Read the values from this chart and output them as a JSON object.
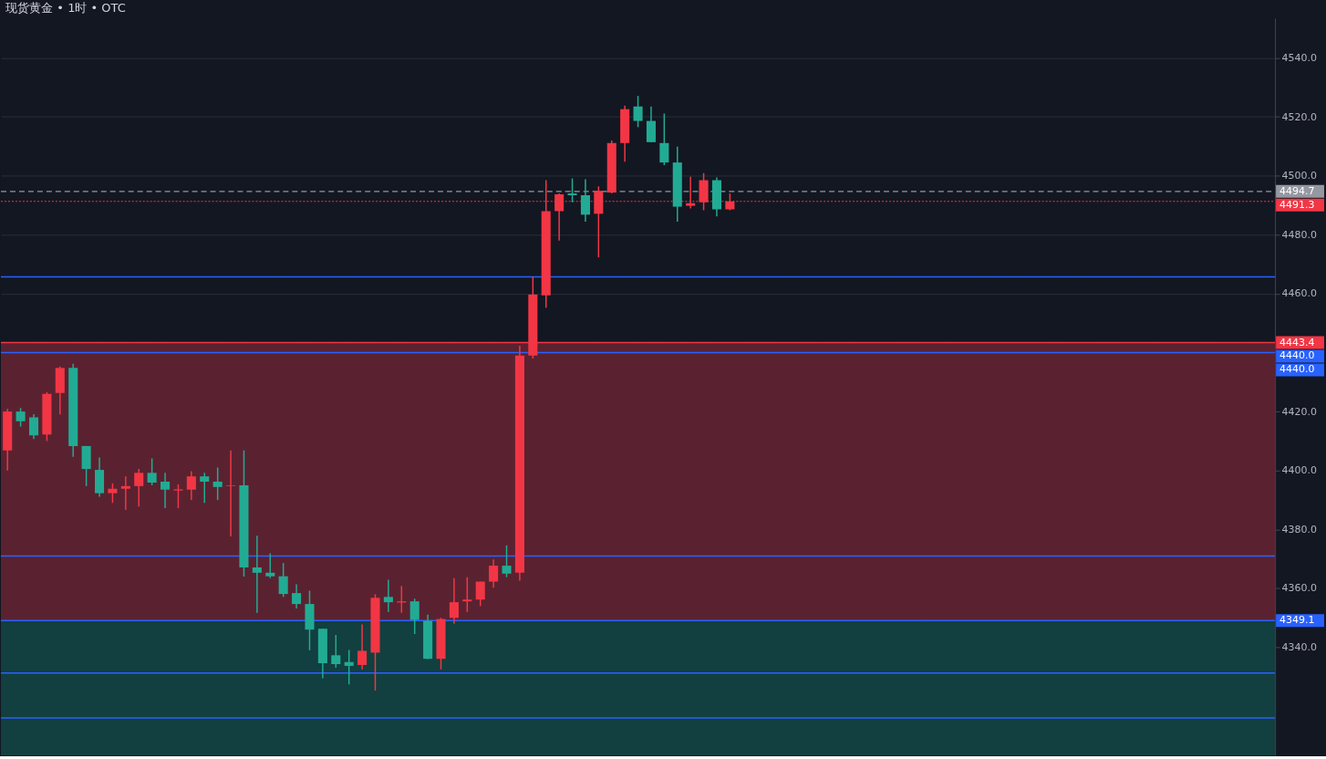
{
  "chart_data": {
    "type": "candlestick",
    "title": "现货黄金 • 1时 • OTC",
    "categories": [
      null,
      null,
      null,
      null,
      null,
      null,
      null,
      null,
      null,
      null,
      null,
      null,
      null,
      null,
      null,
      null,
      null,
      null,
      null,
      null,
      null,
      null,
      null,
      null,
      null,
      null,
      null,
      null,
      null,
      null,
      null,
      null,
      null,
      null,
      null,
      null,
      null,
      null,
      null,
      null,
      null,
      null,
      null,
      null,
      null,
      null,
      null,
      null,
      null,
      null,
      null,
      null,
      null,
      null,
      null,
      null,
      null,
      null,
      null,
      null,
      null,
      null,
      null,
      null,
      null,
      null,
      null,
      null,
      null,
      null,
      null,
      null,
      null,
      null,
      null,
      null,
      null,
      null,
      null,
      null,
      null,
      null,
      null,
      null,
      null,
      null,
      null,
      null,
      null,
      null,
      null,
      null,
      null,
      null,
      null,
      null,
      null
    ],
    "ohlc": [
      [
        4406.8,
        4420.9,
        4400.0,
        4420.0
      ],
      [
        4420.0,
        4421.2,
        4414.9,
        4416.7
      ],
      [
        4418.0,
        4419.1,
        4410.7,
        4411.9
      ],
      [
        4412.2,
        4426.6,
        4410.0,
        4426.0
      ],
      [
        4426.3,
        4435.3,
        4419.0,
        4434.8
      ],
      [
        4434.8,
        4436.2,
        4404.6,
        4408.3
      ],
      [
        4408.3,
        4408.3,
        4394.7,
        4400.5
      ],
      [
        4400.2,
        4404.4,
        4391.1,
        4392.3
      ],
      [
        4392.3,
        4395.6,
        4389.0,
        4393.8
      ],
      [
        4393.8,
        4398.0,
        4386.6,
        4394.7
      ],
      [
        4394.7,
        4400.5,
        4387.8,
        4399.2
      ],
      [
        4399.2,
        4404.1,
        4395.0,
        4395.9
      ],
      [
        4396.2,
        4399.2,
        4387.2,
        4393.5
      ],
      [
        4393.2,
        4395.3,
        4387.2,
        4393.6
      ],
      [
        4393.5,
        4399.8,
        4390.0,
        4398.0
      ],
      [
        4398.0,
        4399.2,
        4389.0,
        4396.2
      ],
      [
        4396.2,
        4401.0,
        4390.0,
        4394.4
      ],
      [
        4394.7,
        4406.8,
        4377.6,
        4395.0
      ],
      [
        4395.0,
        4406.8,
        4364.0,
        4367.1
      ],
      [
        4367.1,
        4377.9,
        4351.7,
        4365.3
      ],
      [
        4365.3,
        4371.9,
        4363.5,
        4364.1
      ],
      [
        4364.1,
        4368.6,
        4357.1,
        4358.1
      ],
      [
        4358.4,
        4361.4,
        4353.2,
        4354.7
      ],
      [
        4354.7,
        4359.2,
        4339.0,
        4346.0
      ],
      [
        4346.3,
        4346.3,
        4329.5,
        4334.6
      ],
      [
        4337.3,
        4344.2,
        4333.1,
        4334.3
      ],
      [
        4335.0,
        4339.1,
        4327.4,
        4333.7
      ],
      [
        4334.0,
        4347.8,
        4332.5,
        4338.8
      ],
      [
        4338.2,
        4358.0,
        4325.3,
        4356.8
      ],
      [
        4357.1,
        4362.9,
        4352.0,
        4355.3
      ],
      [
        4355.2,
        4360.8,
        4351.7,
        4355.6
      ],
      [
        4355.6,
        4356.5,
        4344.5,
        4349.3
      ],
      [
        4349.0,
        4351.1,
        4336.0,
        4336.1
      ],
      [
        4336.1,
        4350.0,
        4332.5,
        4349.6
      ],
      [
        4350.0,
        4363.5,
        4348.0,
        4355.3
      ],
      [
        4355.6,
        4363.8,
        4352.0,
        4356.2
      ],
      [
        4356.2,
        4362.3,
        4354.0,
        4362.3
      ],
      [
        4362.3,
        4369.8,
        4360.2,
        4367.7
      ],
      [
        4367.7,
        4374.6,
        4363.8,
        4365.0
      ],
      [
        4365.3,
        4442.3,
        4362.6,
        4439.0
      ],
      [
        4439.0,
        4465.7,
        4438.0,
        4459.7
      ],
      [
        4459.4,
        4498.5,
        4455.2,
        4488.0
      ],
      [
        4488.0,
        4494.0,
        4478.0,
        4493.7
      ],
      [
        4494.0,
        4499.1,
        4491.0,
        4493.4
      ],
      [
        4493.4,
        4498.8,
        4484.4,
        4486.8
      ],
      [
        4487.1,
        4496.4,
        4472.3,
        4494.9
      ],
      [
        4494.3,
        4512.0,
        4494.0,
        4511.1
      ],
      [
        4511.1,
        4523.8,
        4504.8,
        4522.6
      ],
      [
        4523.5,
        4527.1,
        4516.5,
        4518.6
      ],
      [
        4518.6,
        4523.5,
        4511.4,
        4511.4
      ],
      [
        4511.1,
        4521.1,
        4503.6,
        4504.5
      ],
      [
        4504.5,
        4509.9,
        4484.4,
        4489.5
      ],
      [
        4489.8,
        4499.7,
        4488.9,
        4490.7
      ],
      [
        4491.0,
        4500.9,
        4488.3,
        4498.5
      ],
      [
        4498.5,
        4499.4,
        4486.2,
        4488.6
      ],
      [
        4488.6,
        4494.0,
        4488.3,
        4491.3
      ],
      null,
      null,
      null,
      null,
      null,
      null,
      null,
      null,
      null,
      null,
      null,
      null,
      null,
      null,
      null,
      null,
      null,
      null,
      null,
      null,
      null,
      null,
      null,
      null,
      null,
      null,
      null,
      null,
      null,
      null,
      null,
      null,
      null,
      null,
      null,
      null,
      null,
      null,
      null,
      null,
      null
    ],
    "colors": [
      "#f23645",
      "#22ab94",
      "#22ab94",
      "#f23645",
      "#f23645",
      "#22ab94",
      "#22ab94",
      "#22ab94",
      "#f23645",
      "#f23645",
      "#f23645",
      "#22ab94",
      "#22ab94",
      "#f23645",
      "#f23645",
      "#22ab94",
      "#22ab94",
      "#f23645",
      "#22ab94",
      "#22ab94",
      "#22ab94",
      "#22ab94",
      "#22ab94",
      "#22ab94",
      "#22ab94",
      "#22ab94",
      "#22ab94",
      "#f23645",
      "#f23645",
      "#22ab94",
      "#f23645",
      "#22ab94",
      "#22ab94",
      "#f23645",
      "#f23645",
      "#f23645",
      "#f23645",
      "#f23645",
      "#22ab94",
      "#f23645",
      "#f23645",
      "#f23645",
      "#f23645",
      "#22ab94",
      "#22ab94",
      "#f23645",
      "#f23645",
      "#f23645",
      "#22ab94",
      "#22ab94",
      "#22ab94",
      "#22ab94",
      "#f23645",
      "#f23645",
      "#22ab94",
      "#f23645",
      null,
      null,
      null,
      null,
      null,
      null,
      null,
      null,
      null,
      null,
      null,
      null,
      null,
      null,
      null,
      null,
      null,
      null,
      null,
      null,
      null,
      null,
      null,
      null,
      null,
      null,
      null,
      null,
      null,
      null,
      null,
      null,
      null,
      null,
      null,
      null,
      null,
      null,
      null,
      null,
      null
    ],
    "ylim": [
      4303.3,
      4553.5
    ],
    "yticks": [
      {
        "value": 4340,
        "label": "4340.0"
      },
      {
        "value": 4360,
        "label": "4360.0"
      },
      {
        "value": 4380,
        "label": "4380.0"
      },
      {
        "value": 4400,
        "label": "4400.0"
      },
      {
        "value": 4420,
        "label": "4420.0"
      },
      {
        "value": 4440,
        "label": null
      },
      {
        "value": 4460,
        "label": "4460.0"
      },
      {
        "value": 4480,
        "label": "4480.0"
      },
      {
        "value": 4500,
        "label": "4500.0"
      },
      {
        "value": 4520,
        "label": "4520.0"
      },
      {
        "value": 4540,
        "label": "4540.0"
      }
    ],
    "grid": "y",
    "annotations": [
      "4440.0"
    ],
    "bands": [
      {
        "axis": "y",
        "from": 4349.1,
        "to": 4443.4,
        "color": "#5a2230"
      },
      {
        "axis": "y",
        "from": 4303.3,
        "to": 4349.1,
        "color": "#123f3f"
      }
    ],
    "ref_lines": [
      {
        "axis": "y",
        "value": 4465.7,
        "color": "#2962ff"
      },
      {
        "axis": "y",
        "value": 4443.4,
        "label": "4443.4",
        "color": "#f23645"
      },
      {
        "axis": "y",
        "value": 4440.0,
        "label": "4440.0",
        "color": "#2962ff"
      },
      {
        "axis": "y",
        "value": 4371.0,
        "color": "#2962ff"
      },
      {
        "axis": "y",
        "value": 4349.1,
        "label": "4349.1",
        "color": "#2962ff"
      },
      {
        "axis": "y",
        "value": 4331.3,
        "color": "#2962ff"
      },
      {
        "axis": "y",
        "value": 4316.0,
        "color": "#2962ff"
      },
      {
        "axis": "y",
        "value": 4494.7,
        "label": "4494.7",
        "color": "#9598a1",
        "line_style": "dashed"
      },
      {
        "axis": "y",
        "value": 4491.3,
        "label": "4491.3",
        "color": "#f23645",
        "line_style": "dotted"
      }
    ]
  }
}
